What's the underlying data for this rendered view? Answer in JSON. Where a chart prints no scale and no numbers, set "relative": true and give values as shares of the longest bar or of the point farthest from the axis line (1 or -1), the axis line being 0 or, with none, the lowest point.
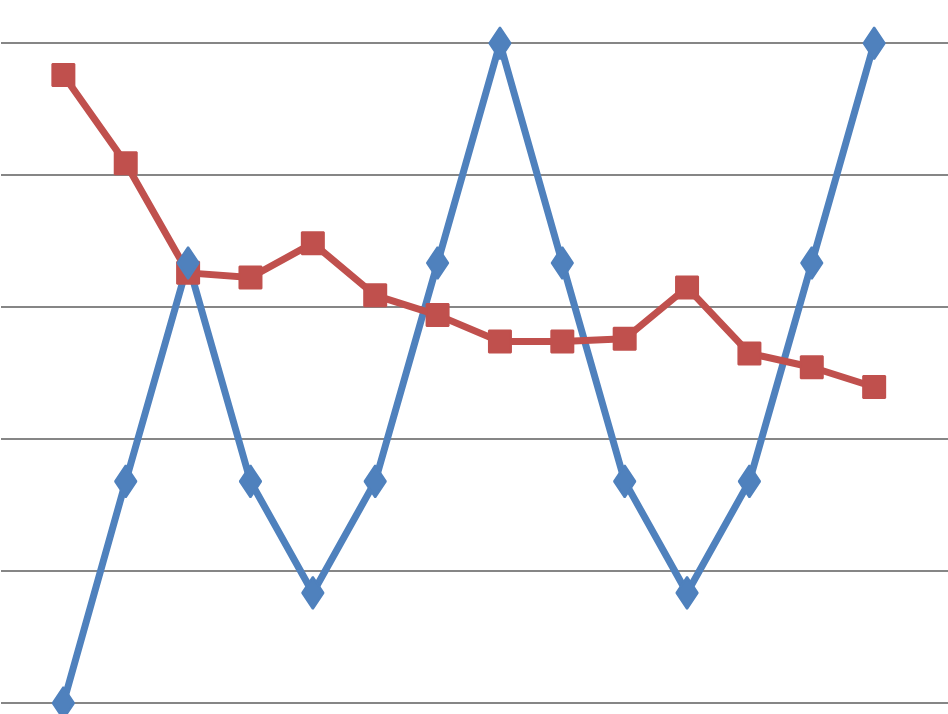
{
  "chart_data": {
    "type": "line",
    "relative": true,
    "grid": "y",
    "categories": [
      null,
      null,
      null,
      null,
      null,
      null,
      null,
      null,
      null,
      null,
      null,
      null,
      null,
      null
    ],
    "series": [
      {
        "color": "#4f81bd",
        "marker": "diamond",
        "values": [
          0,
          0.336,
          0.667,
          0.336,
          0.167,
          0.336,
          0.667,
          1,
          0.667,
          0.336,
          0.167,
          0.336,
          0.667,
          1
        ]
      },
      {
        "color": "#c0504d",
        "marker": "square",
        "values": [
          0.952,
          0.818,
          0.652,
          0.645,
          0.697,
          0.618,
          0.588,
          0.548,
          0.548,
          0.552,
          0.63,
          0.53,
          0.509,
          0.479
        ]
      }
    ]
  }
}
